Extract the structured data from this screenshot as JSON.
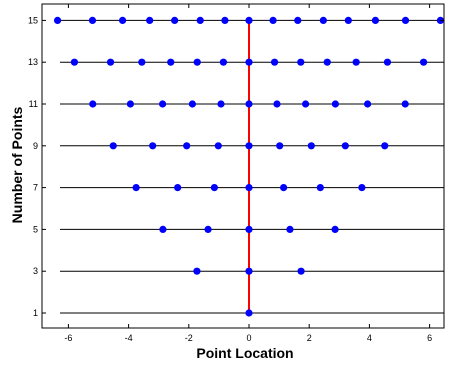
{
  "chart_data": {
    "type": "scatter",
    "title": "",
    "xlabel": "Point Location",
    "ylabel": "Number of Points",
    "xlim": [
      -6.3,
      6.3
    ],
    "ylim": [
      1,
      15
    ],
    "x_ticks": [
      -6,
      -4,
      -2,
      0,
      2,
      4,
      6
    ],
    "y_ticks": [
      1,
      3,
      5,
      7,
      9,
      11,
      13,
      15
    ],
    "grid": false,
    "legend": "none",
    "colors": {
      "points": "#0000ff",
      "center_line": "#ff0000",
      "row_lines": "#000000"
    },
    "rows": [
      {
        "n": 1,
        "x": [
          0
        ]
      },
      {
        "n": 3,
        "x": [
          -1.73,
          0,
          1.73
        ]
      },
      {
        "n": 5,
        "x": [
          -2.86,
          -1.36,
          0,
          1.36,
          2.86
        ]
      },
      {
        "n": 7,
        "x": [
          -3.75,
          -2.37,
          -1.15,
          0,
          1.15,
          2.37,
          3.75
        ]
      },
      {
        "n": 9,
        "x": [
          -4.51,
          -3.2,
          -2.07,
          -1.02,
          0,
          1.02,
          2.07,
          3.2,
          4.51
        ]
      },
      {
        "n": 11,
        "x": [
          -5.19,
          -3.94,
          -2.87,
          -1.88,
          -0.93,
          0,
          0.93,
          1.88,
          2.87,
          3.94,
          5.19
        ]
      },
      {
        "n": 13,
        "x": [
          -5.8,
          -4.6,
          -3.56,
          -2.6,
          -1.72,
          -0.85,
          0,
          0.85,
          1.72,
          2.6,
          3.56,
          4.6,
          5.8
        ]
      },
      {
        "n": 15,
        "x": [
          -6.36,
          -5.2,
          -4.2,
          -3.3,
          -2.47,
          -1.62,
          -0.8,
          0,
          0.8,
          1.62,
          2.47,
          3.3,
          4.2,
          5.2,
          6.36
        ]
      }
    ]
  }
}
